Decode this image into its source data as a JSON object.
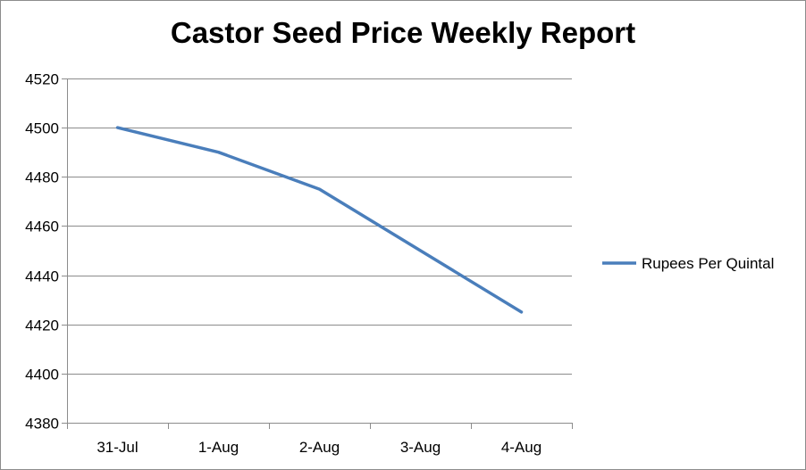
{
  "chart_data": {
    "type": "line",
    "title": "Castor Seed Price Weekly Report",
    "xlabel": "",
    "ylabel": "",
    "categories": [
      "31-Jul",
      "1-Aug",
      "2-Aug",
      "3-Aug",
      "4-Aug"
    ],
    "series": [
      {
        "name": "Rupees Per Quintal",
        "values": [
          4500,
          4490,
          4475,
          4450,
          4425
        ],
        "color": "#4a7ebb"
      }
    ],
    "ylim": [
      4380,
      4520
    ],
    "yticks": [
      4380,
      4400,
      4420,
      4440,
      4460,
      4480,
      4500,
      4520
    ],
    "grid": "horizontal",
    "legend_position": "right"
  }
}
